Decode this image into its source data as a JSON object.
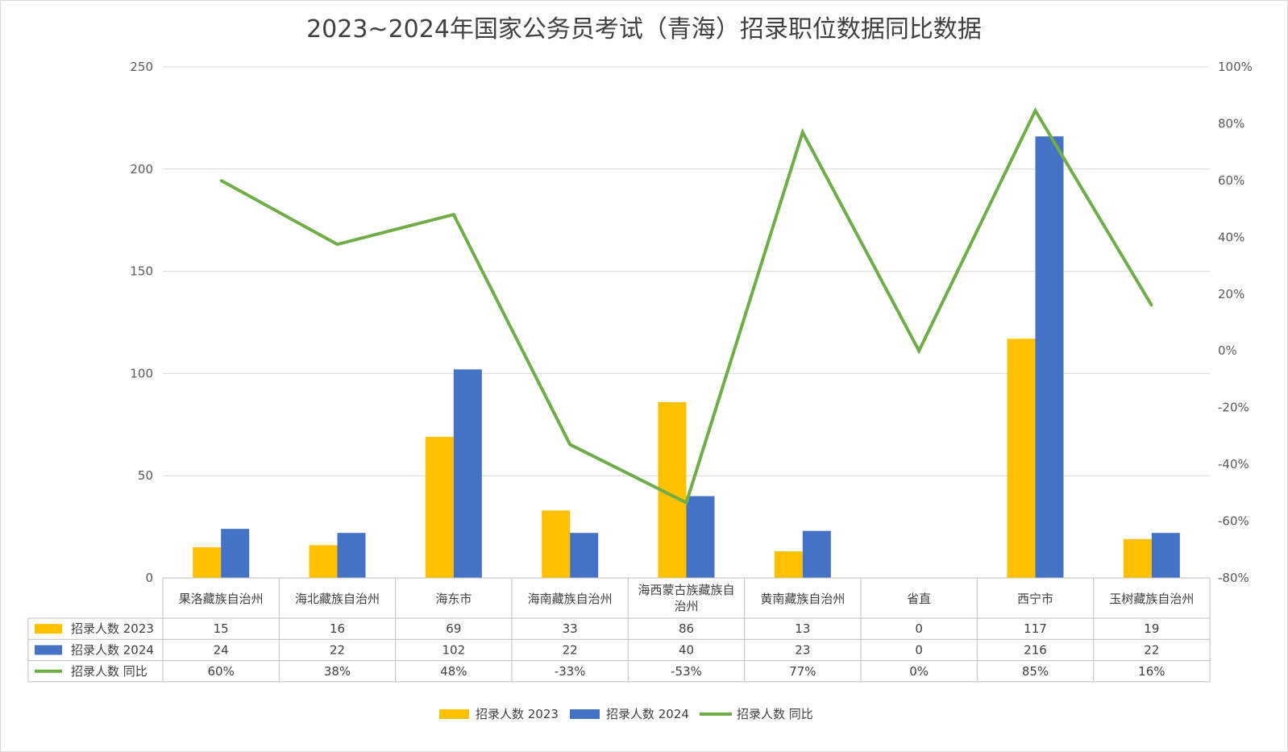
{
  "chart_data": {
    "type": "bar",
    "title": "2023~2024年国家公务员考试（青海）招录职位数据同比数据",
    "categories": [
      "果洛藏族自治州",
      "海北藏族自治州",
      "海东市",
      "海南藏族自治州",
      "海西蒙古族藏族自治州",
      "黄南藏族自治州",
      "省直",
      "西宁市",
      "玉树藏族自治州"
    ],
    "series": [
      {
        "name": "招录人数 2023",
        "type": "bar",
        "axis": "left",
        "color": "#FFC000",
        "values": [
          15,
          16,
          69,
          33,
          86,
          13,
          0,
          117,
          19
        ],
        "labels": [
          "15",
          "16",
          "69",
          "33",
          "86",
          "13",
          "0",
          "117",
          "19"
        ]
      },
      {
        "name": "招录人数 2024",
        "type": "bar",
        "axis": "left",
        "color": "#4472C4",
        "values": [
          24,
          22,
          102,
          22,
          40,
          23,
          0,
          216,
          22
        ],
        "labels": [
          "24",
          "22",
          "102",
          "22",
          "40",
          "23",
          "0",
          "216",
          "22"
        ]
      },
      {
        "name": "招录人数 同比",
        "type": "line",
        "axis": "right",
        "color": "#70AD47",
        "values": [
          0.6,
          0.375,
          0.48,
          -0.33,
          -0.535,
          0.77,
          0.0,
          0.846,
          0.16
        ],
        "labels": [
          "60%",
          "38%",
          "48%",
          "-33%",
          "-53%",
          "77%",
          "0%",
          "85%",
          "16%"
        ]
      }
    ],
    "y_left": {
      "min": 0,
      "max": 250,
      "ticks": [
        "0",
        "50",
        "100",
        "150",
        "200",
        "250"
      ]
    },
    "y_right": {
      "min": -0.8,
      "max": 1.0,
      "ticks": [
        "-80%",
        "-60%",
        "-40%",
        "-20%",
        "0%",
        "20%",
        "40%",
        "60%",
        "80%",
        "100%"
      ]
    },
    "grid": true,
    "legend_position": "bottom",
    "data_table": true
  }
}
